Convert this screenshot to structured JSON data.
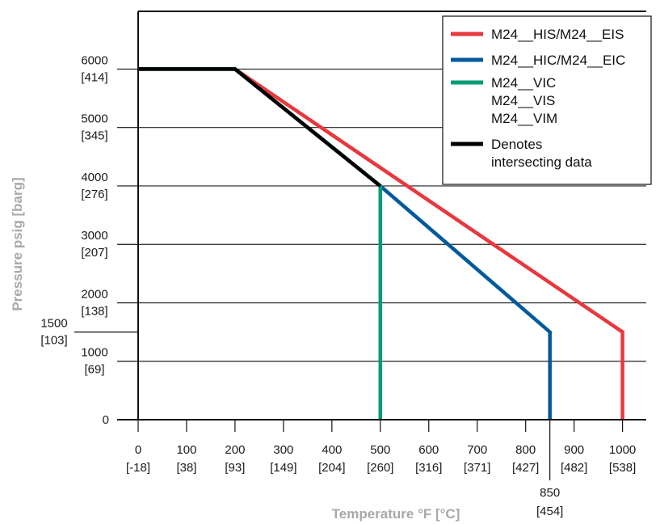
{
  "chart_data": {
    "type": "line",
    "xlabel": "Temperature °F [°C]",
    "ylabel": "Pressure psig [barg]",
    "xlim": [
      0,
      1050
    ],
    "ylim": [
      0,
      7000
    ],
    "grid": "horizontal",
    "legend_position": "top-right",
    "x_ticks": [
      {
        "value": 0,
        "label": "0",
        "sub": "[-18]"
      },
      {
        "value": 100,
        "label": "100",
        "sub": "[38]"
      },
      {
        "value": 200,
        "label": "200",
        "sub": "[93]"
      },
      {
        "value": 300,
        "label": "300",
        "sub": "[149]"
      },
      {
        "value": 400,
        "label": "400",
        "sub": "[204]"
      },
      {
        "value": 500,
        "label": "500",
        "sub": "[260]"
      },
      {
        "value": 600,
        "label": "600",
        "sub": "[316]"
      },
      {
        "value": 700,
        "label": "700",
        "sub": "[371]"
      },
      {
        "value": 800,
        "label": "800",
        "sub": "[427]"
      },
      {
        "value": 900,
        "label": "900",
        "sub": "[482]"
      },
      {
        "value": 1000,
        "label": "1000",
        "sub": "[538]"
      }
    ],
    "x_extra_tick": {
      "value": 850,
      "label": "850",
      "sub": "[454]"
    },
    "y_ticks": [
      {
        "value": 0,
        "label": "0",
        "sub": ""
      },
      {
        "value": 1000,
        "label": "1000",
        "sub": "[69]"
      },
      {
        "value": 2000,
        "label": "2000",
        "sub": "[138]"
      },
      {
        "value": 3000,
        "label": "3000",
        "sub": "[207]"
      },
      {
        "value": 4000,
        "label": "4000",
        "sub": "[276]"
      },
      {
        "value": 5000,
        "label": "5000",
        "sub": "[345]"
      },
      {
        "value": 6000,
        "label": "6000",
        "sub": "[414]"
      }
    ],
    "y_extra_tick": {
      "value": 1500,
      "label": "1500",
      "sub": "[103]"
    },
    "series": [
      {
        "name": "M24__HIS/M24__EIS",
        "color": "#e8383d",
        "points": [
          [
            0,
            6000
          ],
          [
            200,
            6000
          ],
          [
            1000,
            1500
          ],
          [
            1000,
            0
          ]
        ]
      },
      {
        "name": "M24__HIC/M24__EIC",
        "color": "#005a9c",
        "points": [
          [
            0,
            6000
          ],
          [
            200,
            6000
          ],
          [
            500,
            4000
          ],
          [
            850,
            1500
          ],
          [
            850,
            0
          ]
        ]
      },
      {
        "name": "M24__VIC\nM24__VIS\nM24__VIM",
        "color": "#009b77",
        "points": [
          [
            0,
            6000
          ],
          [
            200,
            6000
          ],
          [
            500,
            4000
          ],
          [
            500,
            0
          ]
        ]
      },
      {
        "name": "Denotes\nintersecting data",
        "color": "#000000",
        "points": [
          [
            0,
            6000
          ],
          [
            200,
            6000
          ],
          [
            500,
            4000
          ]
        ]
      }
    ]
  }
}
